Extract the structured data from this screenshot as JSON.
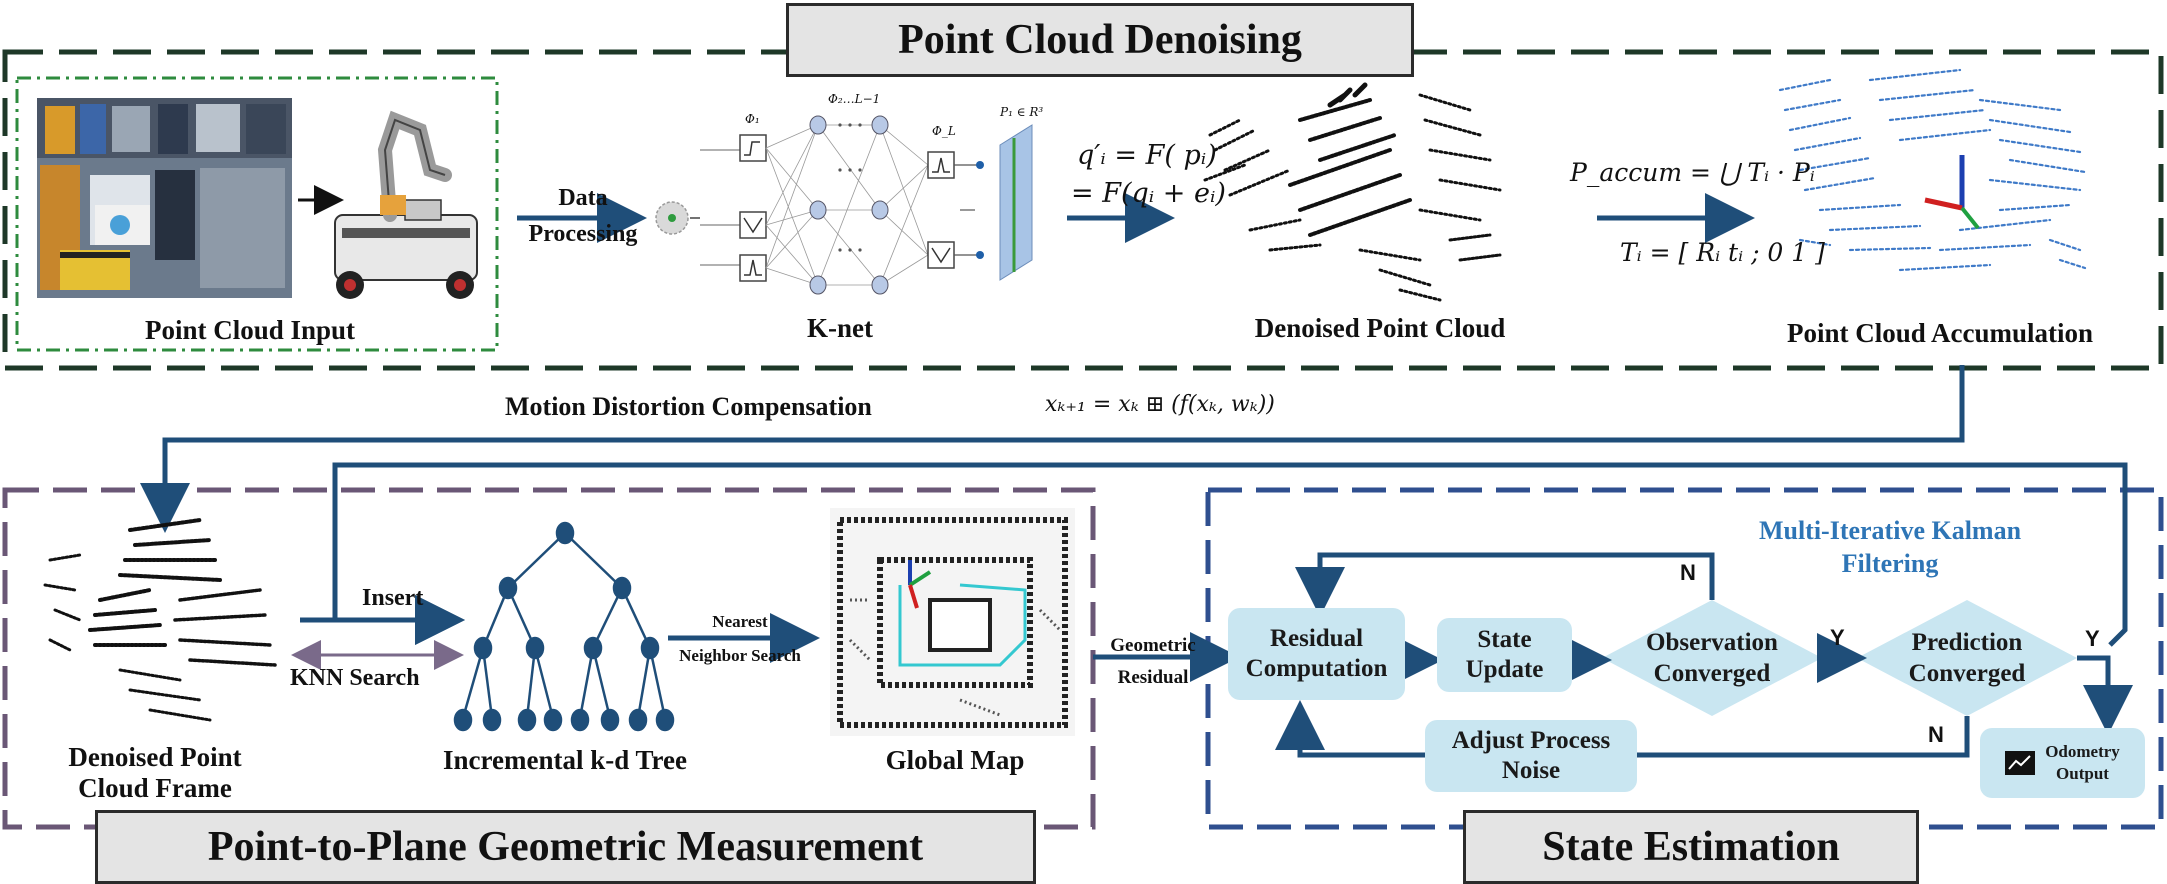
{
  "titles": {
    "denoising": "Point Cloud Denoising",
    "measurement": "Point-to-Plane Geometric Measurement",
    "estimation": "State Estimation"
  },
  "denoising": {
    "input_caption": "Point Cloud Input",
    "data_processing": "Data\nProcessing",
    "knet_caption": "K-net",
    "knet_eq_line1": "q′ᵢ = F( pᵢ)",
    "knet_eq_line2": "= F(qᵢ + eᵢ)",
    "denoised_caption": "Denoised Point Cloud",
    "accum_eq_line1": "P_accum = ⋃ Tᵢ · Pᵢ",
    "accum_eq_line2": "Tᵢ = [ Rᵢ tᵢ ; 0 1 ]",
    "accum_caption": "Point Cloud Accumulation",
    "net_labels": {
      "phi1": "Φ₁",
      "phi2": "Φ₂…L−1",
      "phiL": "Φ_L",
      "output": "P₁ ∈ R³"
    }
  },
  "motion": {
    "label": "Motion Distortion Compensation",
    "equation": "xₖ₊₁ = xₖ ⊞ (f(xₖ, wₖ))"
  },
  "measurement": {
    "frame_caption": "Denoised Point\nCloud Frame",
    "insert": "Insert",
    "knn": "KNN Search",
    "tree_caption": "Incremental k-d Tree",
    "nearest": "Nearest\nNeighbor Search",
    "map_caption": "Global Map",
    "geometric_residual": "Geometric\nResidual"
  },
  "estimation": {
    "mikf": "Multi-Iterative Kalman\nFiltering",
    "residual": "Residual\nComputation",
    "state_update": "State\nUpdate",
    "observation": "Observation\nConverged",
    "prediction": "Prediction\nConverged",
    "adjust": "Adjust Process\nNoise",
    "odometry": "Odometry\nOutput",
    "n_top": "N",
    "y_mid": "Y",
    "y_right": "Y",
    "n_bottom": "N"
  },
  "colors": {
    "arrow": "#1f4e79",
    "node_fill": "#c9e6f1",
    "accent_blue": "#2e75b6",
    "frame_dark": "#1e3828",
    "frame_green": "#2e8b3e",
    "frame_purple": "#6a5776",
    "frame_navy": "#2f4f8f"
  }
}
